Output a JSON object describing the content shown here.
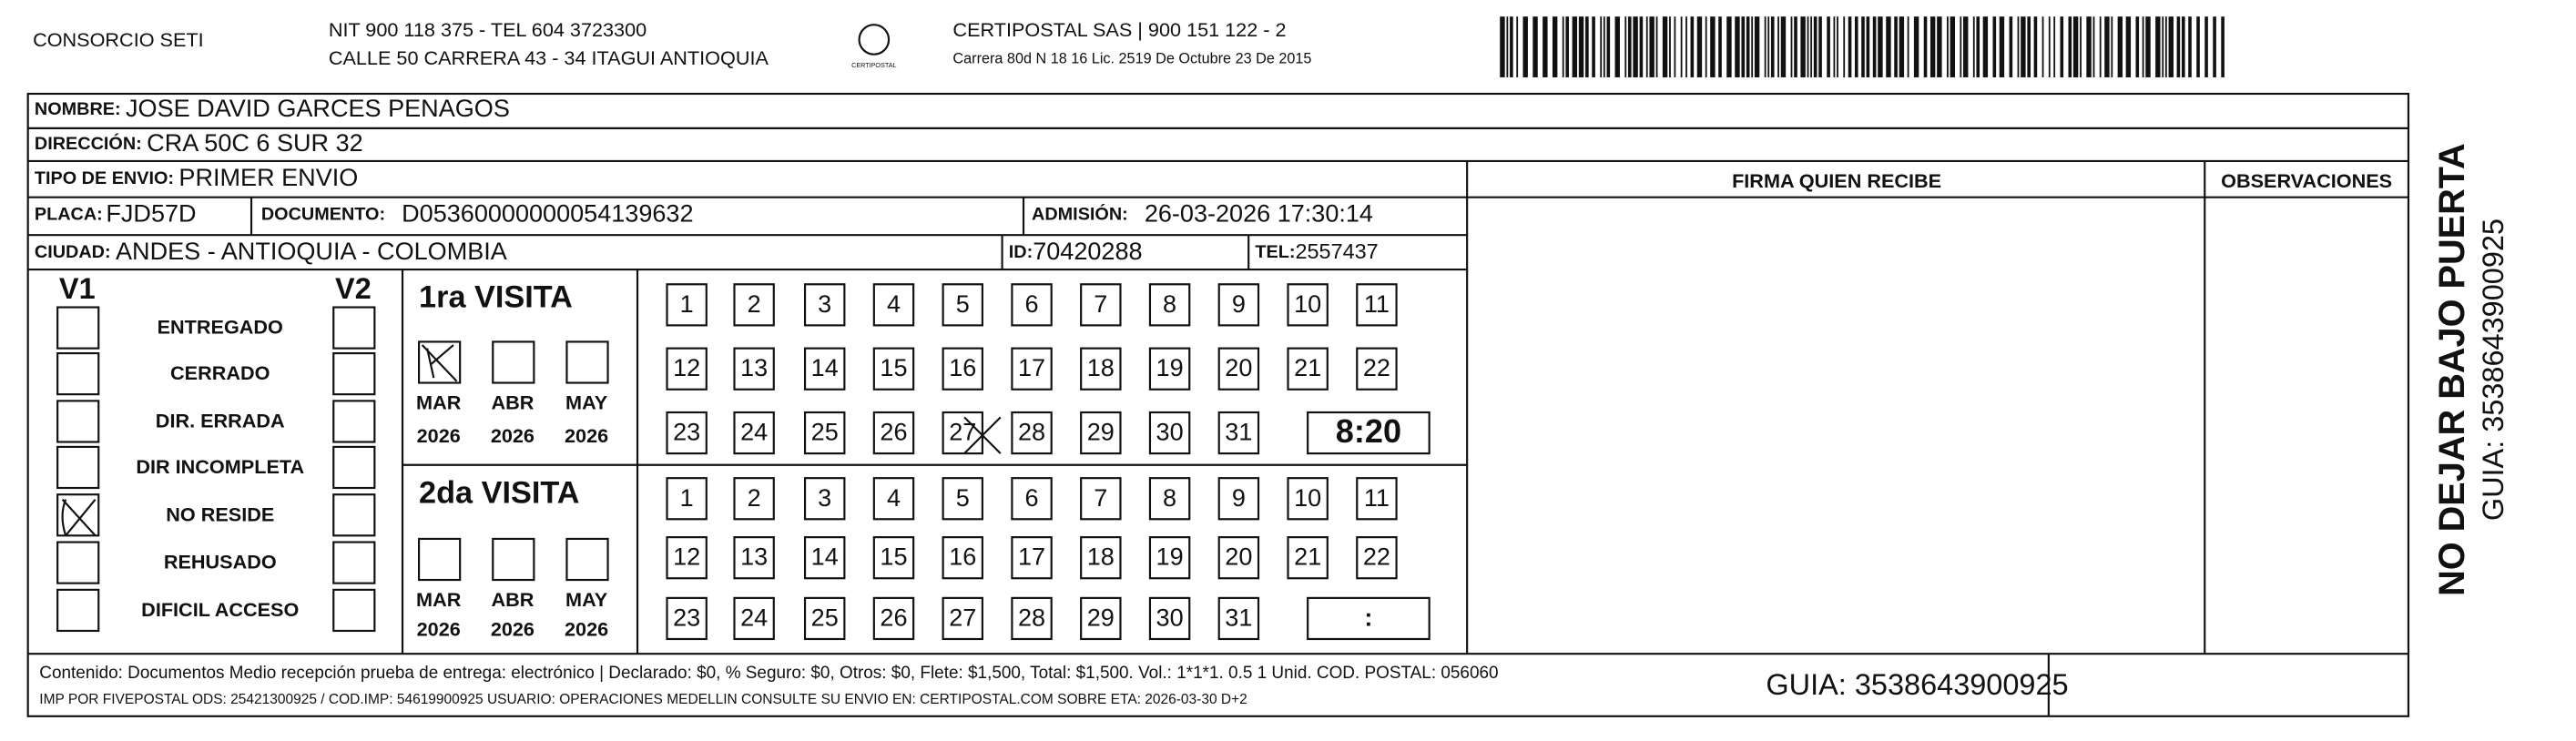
{
  "header": {
    "company": "CONSORCIO SETI",
    "nit": "NIT 900 118 375 - TEL 604 3723300",
    "address": "CALLE 50 CARRERA 43 - 34 ITAGUI ANTIOQUIA",
    "logo": "CERTIPOSTAL",
    "carrier": "CERTIPOSTAL SAS | 900 151 122 - 2",
    "license": "Carrera 80d N 18 16  Lic. 2519 De Octubre 23 De 2015"
  },
  "fields": {
    "nombre": {
      "label": "NOMBRE:",
      "value": "JOSE DAVID GARCES PENAGOS"
    },
    "direccion": {
      "label": "DIRECCIÓN:",
      "value": "CRA 50C 6 SUR 32"
    },
    "tipo": {
      "label": "TIPO DE ENVIO:",
      "value": "PRIMER ENVIO"
    },
    "placa": {
      "label": "PLACA:",
      "value": "FJD57D"
    },
    "documento": {
      "label": "DOCUMENTO:",
      "value": "D05360000000054139632"
    },
    "admision": {
      "label": "ADMISIÓN:",
      "value": "26-03-2026 17:30:14"
    },
    "ciudad": {
      "label": "CIUDAD:",
      "value": "ANDES - ANTIOQUIA - COLOMBIA"
    },
    "id": {
      "label": "ID:",
      "value": "70420288"
    },
    "tel": {
      "label": "TEL:",
      "value": "2557437"
    }
  },
  "columns": {
    "firma": "FIRMA QUIEN RECIBE",
    "observaciones": "OBSERVACIONES"
  },
  "status": {
    "v1": "V1",
    "v2": "V2",
    "reasons": [
      "ENTREGADO",
      "CERRADO",
      "DIR. ERRADA",
      "DIR INCOMPLETA",
      "NO RESIDE",
      "REHUSADO",
      "DIFICIL ACCESO"
    ]
  },
  "visits": [
    {
      "title": "1ra VISITA",
      "months": [
        "MAR",
        "ABR",
        "MAY"
      ],
      "years": [
        "2026",
        "2026",
        "2026"
      ],
      "days": [
        1,
        2,
        3,
        4,
        5,
        6,
        7,
        8,
        9,
        10,
        11,
        12,
        13,
        14,
        15,
        16,
        17,
        18,
        19,
        20,
        21,
        22,
        23,
        24,
        25,
        26,
        27,
        28,
        29,
        30,
        31
      ],
      "time": "8:20"
    },
    {
      "title": "2da VISITA",
      "months": [
        "MAR",
        "ABR",
        "MAY"
      ],
      "years": [
        "2026",
        "2026",
        "2026"
      ],
      "days": [
        1,
        2,
        3,
        4,
        5,
        6,
        7,
        8,
        9,
        10,
        11,
        12,
        13,
        14,
        15,
        16,
        17,
        18,
        19,
        20,
        21,
        22,
        23,
        24,
        25,
        26,
        27,
        28,
        29,
        30,
        31
      ],
      "time": ":"
    }
  ],
  "footer": {
    "content": "Contenido: Documentos Medio recepción prueba de entrega: electrónico | Declarado: $0, % Seguro: $0, Otros: $0, Flete: $1,500, Total: $1,500. Vol.: 1*1*1. 0.5  1 Unid. COD. POSTAL: 056060",
    "imp": "IMP POR FIVEPOSTAL ODS: 25421300925 / COD.IMP: 54619900925 USUARIO: OPERACIONES MEDELLIN CONSULTE SU ENVIO EN: CERTIPOSTAL.COM SOBRE ETA: 2026-03-30 D+2",
    "guia": "GUIA: 3538643900925"
  },
  "side": {
    "warning": "NO DEJAR BAJO PUERTA",
    "guia": "GUIA: 3538643900925"
  }
}
